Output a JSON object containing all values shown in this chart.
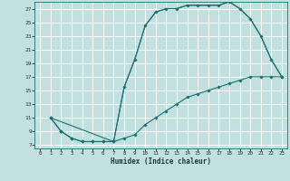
{
  "xlabel": "Humidex (Indice chaleur)",
  "bg_color": "#c2e0e0",
  "grid_color": "#ffffff",
  "line_color": "#1a7070",
  "xlim": [
    -0.5,
    23.5
  ],
  "ylim": [
    6.5,
    28.0
  ],
  "xticks": [
    0,
    1,
    2,
    3,
    4,
    5,
    6,
    7,
    8,
    9,
    10,
    11,
    12,
    13,
    14,
    15,
    16,
    17,
    18,
    19,
    20,
    21,
    22,
    23
  ],
  "yticks": [
    7,
    9,
    11,
    13,
    15,
    17,
    19,
    21,
    23,
    25,
    27
  ],
  "line_bottom_x": [
    1,
    2,
    3,
    4,
    5,
    6,
    7,
    8,
    9,
    10,
    11,
    12,
    13,
    14,
    15,
    16,
    17,
    18,
    19,
    20,
    21,
    22,
    23
  ],
  "line_bottom_y": [
    11,
    9,
    8,
    7.5,
    7.5,
    7.5,
    7.5,
    8,
    8.5,
    10,
    11,
    12,
    13,
    14,
    14.5,
    15,
    15.5,
    16,
    16.5,
    17,
    17,
    17,
    17
  ],
  "line_top_x": [
    1,
    2,
    3,
    4,
    5,
    6,
    7,
    8,
    9,
    10,
    11,
    12,
    13,
    14,
    15,
    16,
    17,
    18,
    19,
    20,
    21,
    22,
    23
  ],
  "line_top_y": [
    11,
    9,
    8,
    7.5,
    7.5,
    7.5,
    7.5,
    15.5,
    19.5,
    24.5,
    26.5,
    27,
    27,
    27.5,
    27.5,
    27.5,
    27.5,
    28,
    27,
    25.5,
    23,
    19.5,
    17
  ],
  "line_diag_x": [
    1,
    7,
    8,
    9,
    10,
    11,
    12,
    13,
    14,
    15,
    16,
    17,
    18,
    19,
    20,
    21,
    22,
    23
  ],
  "line_diag_y": [
    11,
    7.5,
    15.5,
    19.5,
    24.5,
    26.5,
    27,
    27,
    27.5,
    27.5,
    27.5,
    27.5,
    28,
    27,
    25.5,
    23,
    19.5,
    17
  ]
}
